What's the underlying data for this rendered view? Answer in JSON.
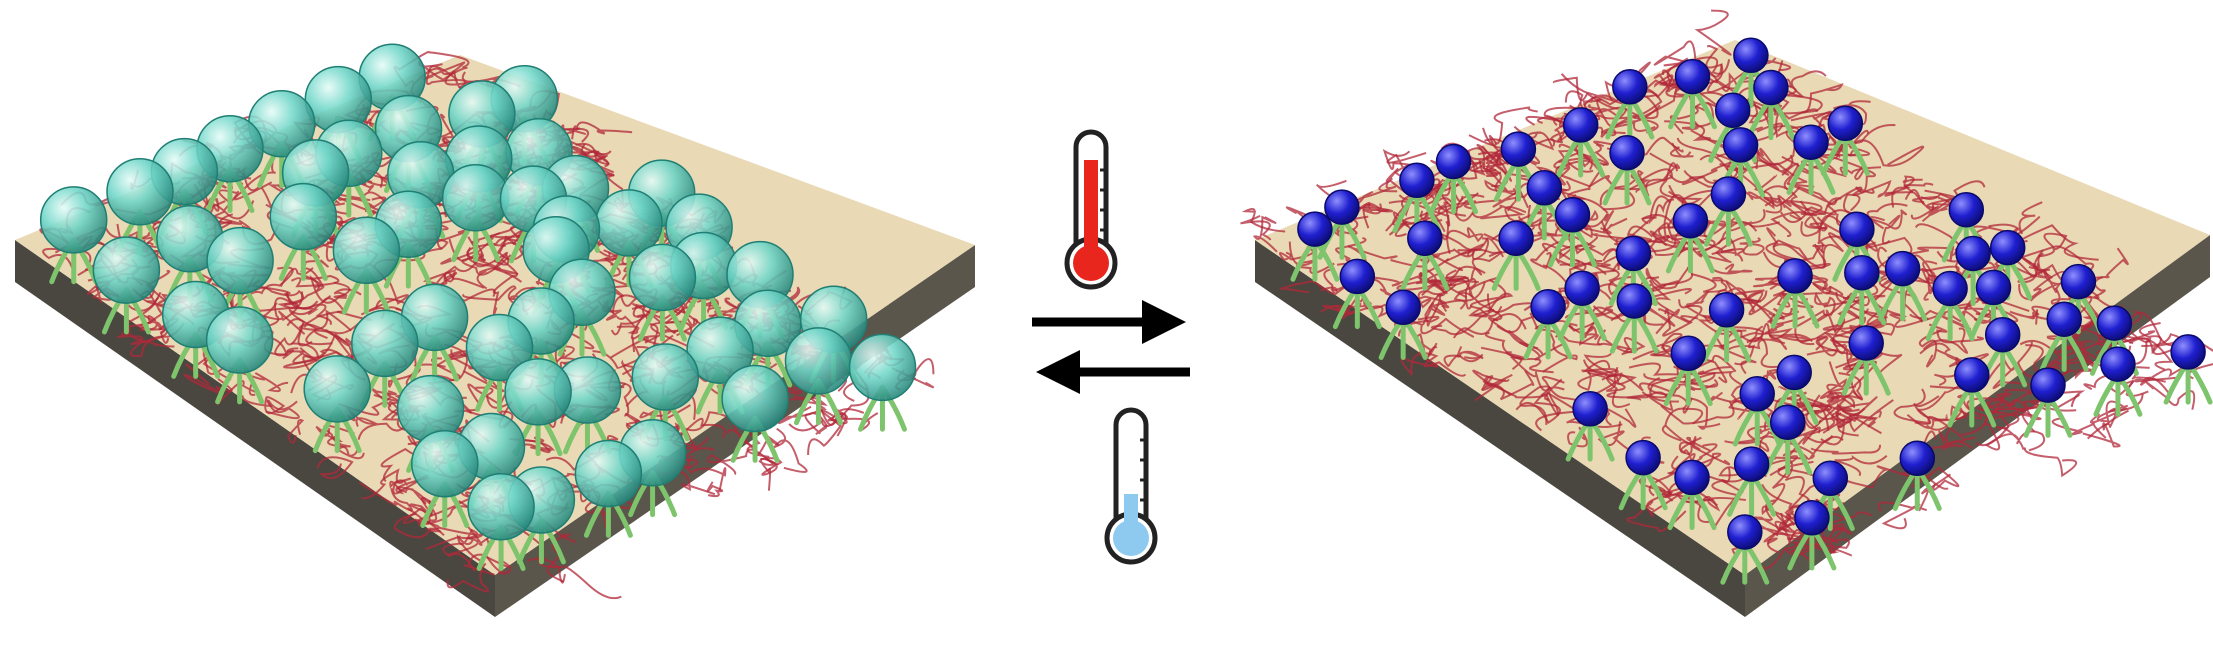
{
  "diagram": {
    "left_panel": {
      "state": "swollen",
      "particle_color": "#6fd6c8",
      "particle_edge_color": "#1f7f74",
      "mesh_color": "#b2283a",
      "strand_color": "#7dc46c",
      "substrate_top_color": "#e9d9b4",
      "substrate_side_color": "#4a4740"
    },
    "right_panel": {
      "state": "collapsed",
      "particle_color": "#1f1fd0",
      "particle_edge_color": "#0a0a6a",
      "mesh_color": "#b2283a",
      "strand_color": "#7dc46c",
      "substrate_top_color": "#e9d9b4",
      "substrate_side_color": "#4a4740"
    },
    "transition": {
      "forward_icon": "thermometer-hot-icon",
      "reverse_icon": "thermometer-cold-icon",
      "hot_color": "#e8261e",
      "cold_color": "#8ec9f0",
      "arrow_color": "#000000"
    }
  }
}
